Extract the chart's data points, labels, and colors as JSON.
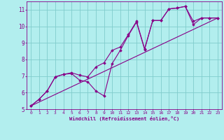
{
  "bg_color": "#b2eeee",
  "grid_color": "#80cccc",
  "line_color": "#880088",
  "marker_color": "#880088",
  "xlabel": "Windchill (Refroidissement éolien,°C)",
  "xlabel_color": "#880088",
  "tick_color": "#880088",
  "xlim": [
    -0.5,
    23.5
  ],
  "ylim": [
    5,
    11.5
  ],
  "xticks": [
    0,
    1,
    2,
    3,
    4,
    5,
    6,
    7,
    8,
    9,
    10,
    11,
    12,
    13,
    14,
    15,
    16,
    17,
    18,
    19,
    20,
    21,
    22,
    23
  ],
  "yticks": [
    5,
    6,
    7,
    8,
    9,
    10,
    11
  ],
  "line1_x": [
    0,
    1,
    2,
    3,
    4,
    5,
    6,
    7,
    8,
    9,
    10,
    11,
    12,
    13,
    14,
    15,
    16,
    17,
    18,
    19,
    20,
    21,
    22,
    23
  ],
  "line1_y": [
    5.2,
    5.6,
    6.1,
    6.95,
    7.1,
    7.15,
    6.75,
    6.65,
    6.1,
    5.8,
    7.75,
    8.55,
    9.45,
    10.25,
    8.6,
    10.35,
    10.35,
    11.05,
    11.1,
    11.2,
    10.1,
    10.5,
    10.5,
    10.5
  ],
  "line2_x": [
    0,
    1,
    2,
    3,
    4,
    5,
    6,
    7,
    8,
    9,
    10,
    11,
    12,
    13,
    14,
    15,
    16,
    17,
    18,
    19,
    20,
    21,
    22,
    23
  ],
  "line2_y": [
    5.2,
    5.6,
    6.1,
    6.95,
    7.1,
    7.2,
    7.05,
    6.95,
    7.55,
    7.8,
    8.55,
    8.75,
    9.5,
    10.3,
    8.65,
    10.35,
    10.35,
    11.05,
    11.1,
    11.2,
    10.3,
    10.5,
    10.5,
    10.5
  ],
  "line3_x": [
    0,
    23
  ],
  "line3_y": [
    5.2,
    10.5
  ]
}
